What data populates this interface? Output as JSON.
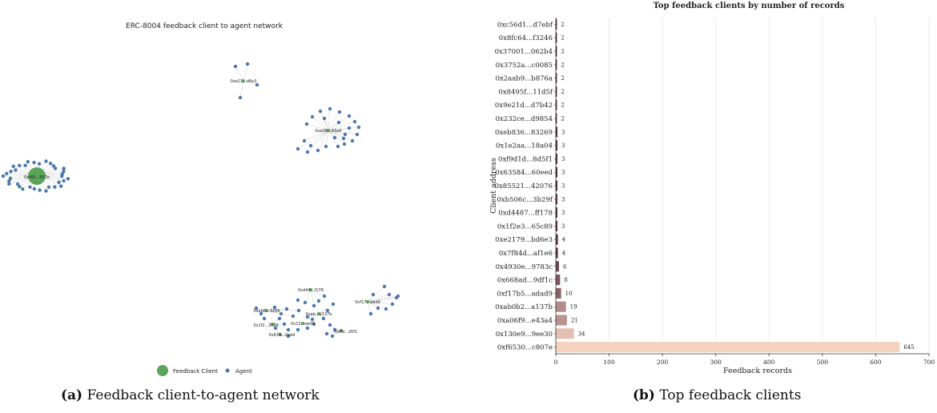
{
  "chart_data": [
    {
      "type": "network",
      "title": "ERC-8004 feedback client to agent network",
      "legend": [
        {
          "name": "Feedback Client",
          "color": "#5aa55a"
        },
        {
          "name": "Agent",
          "color": "#4c78b0"
        }
      ],
      "node_labels": [
        "0xe21...d6e3",
        "0xa06...43a4",
        "0xf65...807e",
        "0xd44...f178",
        "0xf17...dad9",
        "0xeb8...3269",
        "0x1f2...5c89",
        "0x635...0eed",
        "0x8d...d5f1",
        "0xab...a137b",
        "0x13...ee30"
      ],
      "caption_label": "(a)",
      "caption_text": "Feedback client-to-agent network"
    },
    {
      "type": "bar",
      "orientation": "horizontal",
      "title": "Top feedback clients by number of records",
      "xlabel": "Feedback records",
      "ylabel": "Client address",
      "xlim": [
        0,
        700
      ],
      "xticks": [
        0,
        100,
        200,
        300,
        400,
        500,
        600,
        700
      ],
      "grid": true,
      "categories": [
        "0xc56d1...d7ebf",
        "0x8fc64...f3246",
        "0x37001...062b4",
        "0x3752a...c0085",
        "0x2aab9...b876a",
        "0x8495f...11d5f",
        "0x9e21d...d7b42",
        "0x232ce...d9854",
        "0xeb836...83269",
        "0x1e2aa...18a04",
        "0xf9d1d...8d5f1",
        "0x63584...60eed",
        "0x85521...42076",
        "0xb506c...3b29f",
        "0xd4487...ff178",
        "0x1f2e3...65c89",
        "0xe2179...bd6e3",
        "0x7f84d...af1e6",
        "0x4930e...9783c",
        "0x668ad...9df1c",
        "0xf17b5...adad9",
        "0xab0b2...a137b",
        "0xa06f9...e43a4",
        "0x130e9...9ee30",
        "0xf6530...c807e"
      ],
      "values": [
        2,
        2,
        2,
        2,
        2,
        2,
        2,
        2,
        3,
        3,
        3,
        3,
        3,
        3,
        3,
        3,
        4,
        4,
        6,
        8,
        10,
        19,
        21,
        34,
        645
      ],
      "caption_label": "(b)",
      "caption_text": "Top feedback clients"
    }
  ]
}
